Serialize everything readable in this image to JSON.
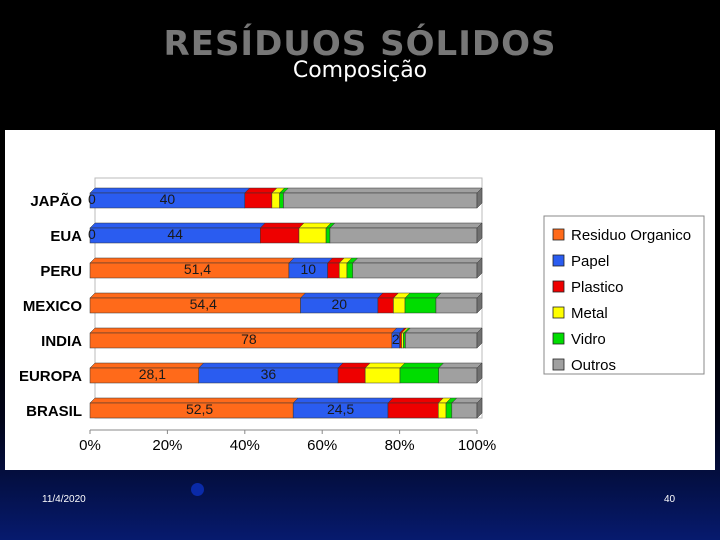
{
  "slide": {
    "title": "RESÍDUOS SÓLIDOS",
    "subtitle": "Composição",
    "date": "11/4/2020",
    "page_number": "40"
  },
  "colors": {
    "Residuo Organico": "#ff6a1a",
    "Papel": "#2a5cf0",
    "Plastico": "#ee0000",
    "Metal": "#ffff00",
    "Vidro": "#00dd00",
    "Outros": "#a0a0a0"
  },
  "chart_data": {
    "type": "bar",
    "orientation": "horizontal",
    "stacked": "percent",
    "categories": [
      "JAPÃO",
      "EUA",
      "PERU",
      "MEXICO",
      "INDIA",
      "EUROPA",
      "BRASIL"
    ],
    "series": [
      {
        "name": "Residuo Organico",
        "values": [
          0,
          0,
          51.4,
          54.4,
          78,
          28.1,
          52.5
        ]
      },
      {
        "name": "Papel",
        "values": [
          40,
          44,
          10,
          20,
          2,
          36,
          24.5
        ]
      },
      {
        "name": "Plastico",
        "values": [
          7,
          10,
          3,
          4,
          0.5,
          7,
          13
        ]
      },
      {
        "name": "Metal",
        "values": [
          2,
          7,
          2,
          3,
          0.5,
          9,
          2
        ]
      },
      {
        "name": "Vidro",
        "values": [
          1,
          1,
          1.5,
          8,
          0.5,
          10,
          1.5
        ]
      },
      {
        "name": "Outros",
        "values": [
          50,
          38,
          32.1,
          10.6,
          18.5,
          9.9,
          6.5
        ]
      }
    ],
    "data_labels": {
      "Residuo Organico": [
        "0",
        "0",
        "51,4",
        "54,4",
        "78",
        "28,1",
        "52,5"
      ],
      "Papel": [
        "40",
        "44",
        "10",
        "20",
        "2",
        "36",
        "24,5"
      ]
    },
    "x_tick_labels": [
      "0%",
      "20%",
      "40%",
      "60%",
      "80%",
      "100%"
    ],
    "xlim": [
      0,
      100
    ],
    "legend_position": "right",
    "grid": false
  }
}
